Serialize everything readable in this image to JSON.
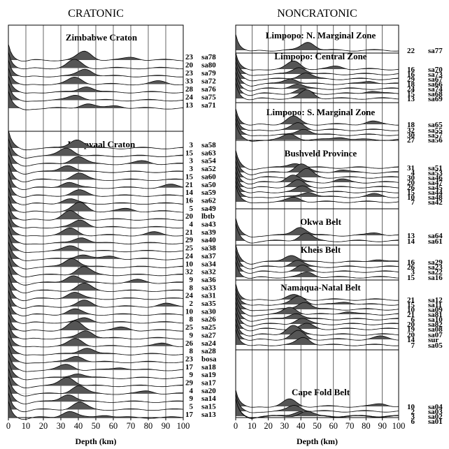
{
  "headers": {
    "left": "CRATONIC",
    "right": "NONCRATONIC"
  },
  "axis": {
    "label": "Depth (km)",
    "ticks": [
      "0",
      "10",
      "20",
      "30",
      "40",
      "50",
      "60",
      "70",
      "80",
      "90",
      "100"
    ]
  },
  "left_panel": {
    "regions": [
      {
        "title": "Zimbabwe Craton",
        "rows": [
          {
            "n": "23",
            "id": "sa78"
          },
          {
            "n": "20",
            "id": "sa80"
          },
          {
            "n": "23",
            "id": "sa79"
          },
          {
            "n": "33",
            "id": "sa72"
          },
          {
            "n": "28",
            "id": "sa76"
          },
          {
            "n": "24",
            "id": "sa75"
          },
          {
            "n": "13",
            "id": "sa71"
          }
        ]
      },
      {
        "title": "Kaapvaal Craton",
        "rows": [
          {
            "n": "3",
            "id": "sa58"
          },
          {
            "n": "15",
            "id": "sa63"
          },
          {
            "n": "3",
            "id": "sa54"
          },
          {
            "n": "3",
            "id": "sa52"
          },
          {
            "n": "15",
            "id": "sa60"
          },
          {
            "n": "21",
            "id": "sa50"
          },
          {
            "n": "14",
            "id": "sa59"
          },
          {
            "n": "16",
            "id": "sa62"
          },
          {
            "n": "5",
            "id": "sa49"
          },
          {
            "n": "20",
            "id": "lbtb"
          },
          {
            "n": "4",
            "id": "sa43"
          },
          {
            "n": "21",
            "id": "sa39"
          },
          {
            "n": "29",
            "id": "sa40"
          },
          {
            "n": "25",
            "id": "sa38"
          },
          {
            "n": "24",
            "id": "sa37"
          },
          {
            "n": "10",
            "id": "sa34"
          },
          {
            "n": "32",
            "id": "sa32"
          },
          {
            "n": "9",
            "id": "sa36"
          },
          {
            "n": "8",
            "id": "sa33"
          },
          {
            "n": "24",
            "id": "sa31"
          },
          {
            "n": "2",
            "id": "sa35"
          },
          {
            "n": "10",
            "id": "sa30"
          },
          {
            "n": "8",
            "id": "sa26"
          },
          {
            "n": "25",
            "id": "sa25"
          },
          {
            "n": "9",
            "id": "sa27"
          },
          {
            "n": "26",
            "id": "sa24"
          },
          {
            "n": "8",
            "id": "sa28"
          },
          {
            "n": "23",
            "id": "bosa"
          },
          {
            "n": "17",
            "id": "sa18"
          },
          {
            "n": "9",
            "id": "sa19"
          },
          {
            "n": "29",
            "id": "sa17"
          },
          {
            "n": "4",
            "id": "sa20"
          },
          {
            "n": "9",
            "id": "sa14"
          },
          {
            "n": "5",
            "id": "sa15"
          },
          {
            "n": "17",
            "id": "sa13"
          }
        ]
      }
    ]
  },
  "right_panel": {
    "regions": [
      {
        "title": "Limpopo: N. Marginal Zone",
        "rows": [
          {
            "n": "22",
            "id": "sa77"
          }
        ]
      },
      {
        "title": "Limpopo: Central Zone",
        "rows": [
          {
            "n": "16",
            "id": "sa70"
          },
          {
            "n": "16",
            "id": "sa73"
          },
          {
            "n": "29",
            "id": "sa67"
          },
          {
            "n": "18",
            "id": "sa66"
          },
          {
            "n": "24",
            "id": "sa74"
          },
          {
            "n": "15",
            "id": "sa68"
          },
          {
            "n": "13",
            "id": "sa69"
          }
        ]
      },
      {
        "title": "Limpopo: S. Marginal Zone",
        "rows": [
          {
            "n": "18",
            "id": "sa65"
          },
          {
            "n": "32",
            "id": "sa55"
          },
          {
            "n": "30",
            "id": "sa57"
          },
          {
            "n": "27",
            "id": "sa56"
          }
        ]
      },
      {
        "title": "Bushveld Province",
        "rows": [
          {
            "n": "31",
            "id": "sa51"
          },
          {
            "n": "4",
            "id": "sa53"
          },
          {
            "n": "30",
            "id": "sa46"
          },
          {
            "n": "20",
            "id": "sa47"
          },
          {
            "n": "26",
            "id": "sa45"
          },
          {
            "n": "15",
            "id": "sa44"
          },
          {
            "n": "10",
            "id": "sa48"
          },
          {
            "n": "7",
            "id": "sa42"
          }
        ]
      },
      {
        "title": "Okwa Belt",
        "rows": [
          {
            "n": "13",
            "id": "sa64"
          },
          {
            "n": "14",
            "id": "sa61"
          }
        ]
      },
      {
        "title": "Kheis Belt",
        "rows": [
          {
            "n": "16",
            "id": "sa29"
          },
          {
            "n": "26",
            "id": "sa23"
          },
          {
            "n": "3",
            "id": "sa22"
          },
          {
            "n": "15",
            "id": "sa16"
          }
        ]
      },
      {
        "title": "Namaqua-Natal Belt",
        "rows": [
          {
            "n": "21",
            "id": "sa12"
          },
          {
            "n": "15",
            "id": "sa11"
          },
          {
            "n": "10",
            "id": "sa09"
          },
          {
            "n": "21",
            "id": "sa81"
          },
          {
            "n": "6",
            "id": "sa10"
          },
          {
            "n": "20",
            "id": "sa82"
          },
          {
            "n": "19",
            "id": "sa08"
          },
          {
            "n": "20",
            "id": "sa07"
          },
          {
            "n": "14",
            "id": "sur"
          },
          {
            "n": "7",
            "id": "sa05"
          }
        ]
      },
      {
        "title": "Cape Fold Belt",
        "rows": [
          {
            "n": "10",
            "id": "sa04"
          },
          {
            "n": "2",
            "id": "sa03"
          },
          {
            "n": "3",
            "id": "sa02"
          },
          {
            "n": "6",
            "id": "sa01"
          }
        ]
      }
    ]
  }
}
